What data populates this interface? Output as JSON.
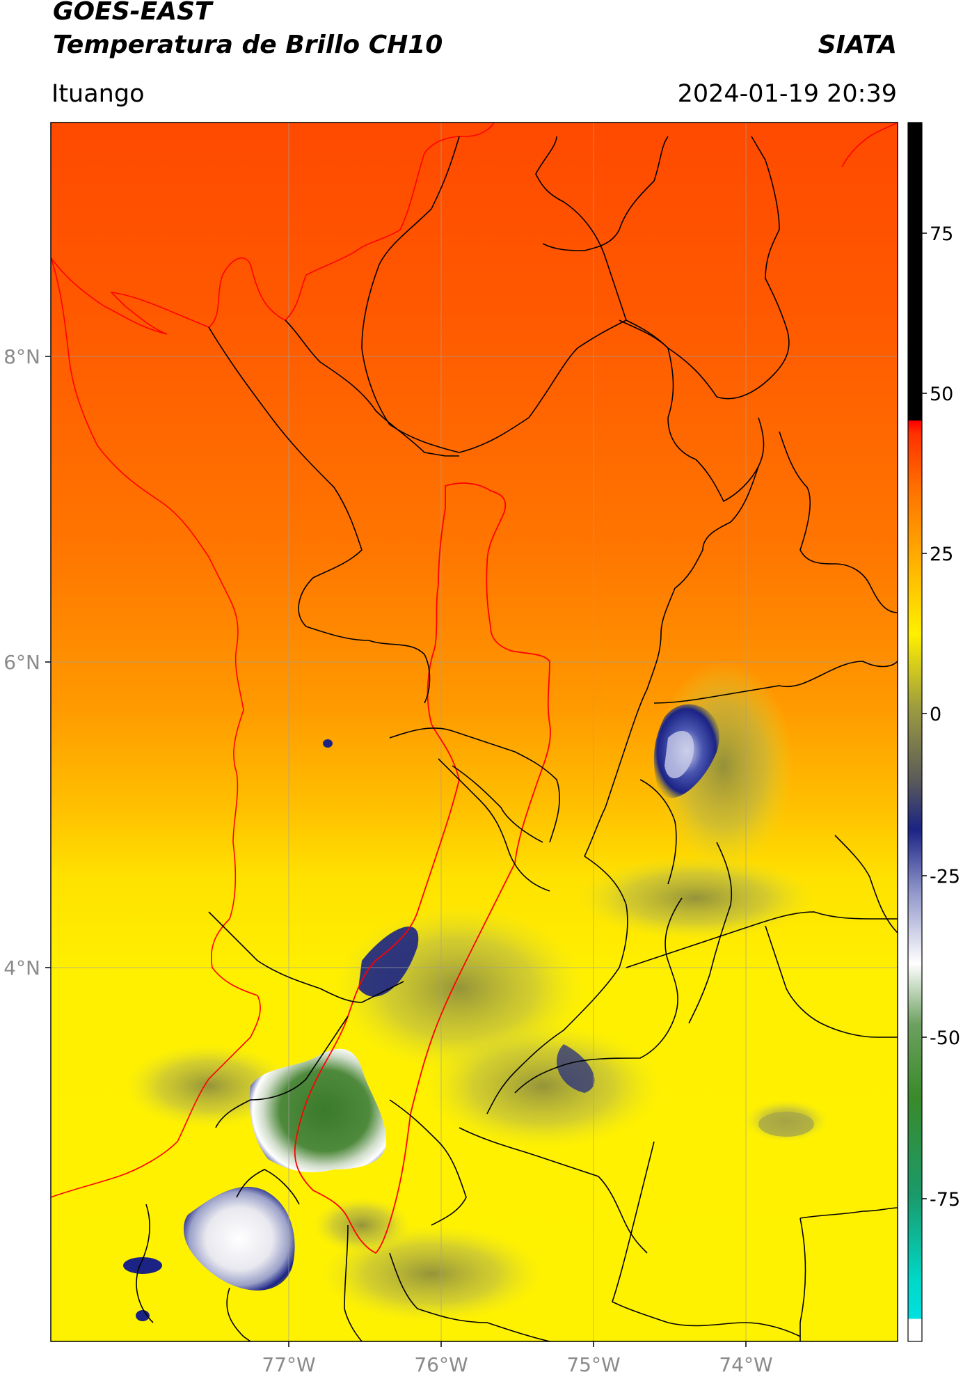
{
  "header": {
    "title_line1": "GOES-EAST",
    "title_line2": "Temperatura de Brillo CH10",
    "brand": "SIATA",
    "region": "Ituango",
    "timestamp": "2024-01-19 20:39"
  },
  "map": {
    "lat_labels": [
      "8°N",
      "6°N",
      "4°N"
    ],
    "lon_labels": [
      "77°W",
      "76°W",
      "75°W",
      "74°W"
    ],
    "border_color": "#000000",
    "basin_color": "#ff0000"
  },
  "colorbar": {
    "tick_labels": [
      "75",
      "50",
      "25",
      "0",
      "-25",
      "-50",
      "-75"
    ],
    "units_hint": ""
  }
}
